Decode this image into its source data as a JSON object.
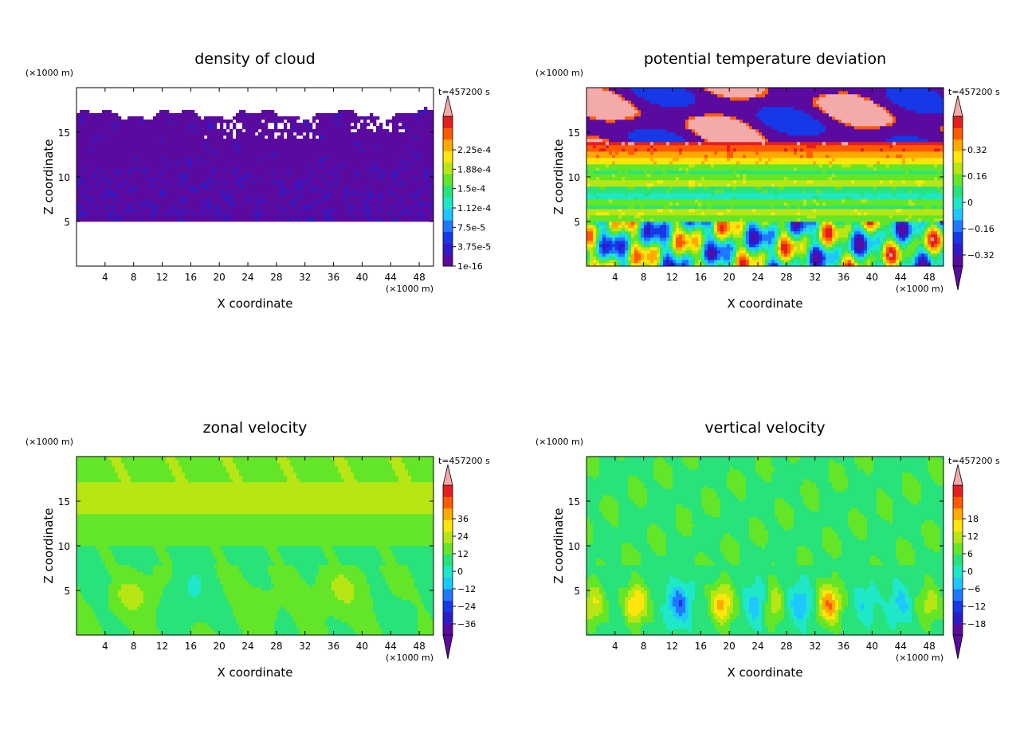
{
  "chart_data": [
    {
      "type": "heatmap",
      "title": "density of cloud",
      "xlabel": "X coordinate",
      "ylabel": "Z coordinate",
      "x_unit": "(×1000 m)",
      "y_unit": "(×1000 m)",
      "time_label": "t=457200 s",
      "xlim": [
        0,
        50
      ],
      "ylim": [
        0,
        20
      ],
      "x_ticks": [
        "4",
        "8",
        "12",
        "16",
        "20",
        "24",
        "28",
        "32",
        "36",
        "40",
        "44",
        "48"
      ],
      "y_ticks": [
        "5",
        "10",
        "15"
      ],
      "colorbar": {
        "labels": [
          "2.25e-4",
          "1.88e-4",
          "1.5e-4",
          "1.12e-4",
          "7.5e-5",
          "3.75e-5",
          "1e-16"
        ],
        "min_arrow": false,
        "max_arrow": true
      },
      "field": "cloud"
    },
    {
      "type": "heatmap",
      "title": "potential temperature deviation",
      "xlabel": "X coordinate",
      "ylabel": "Z coordinate",
      "x_unit": "(×1000 m)",
      "y_unit": "(×1000 m)",
      "time_label": "t=457200 s",
      "xlim": [
        0,
        50
      ],
      "ylim": [
        0,
        20
      ],
      "x_ticks": [
        "4",
        "8",
        "12",
        "16",
        "20",
        "24",
        "28",
        "32",
        "36",
        "40",
        "44",
        "48"
      ],
      "y_ticks": [
        "5",
        "10",
        "15"
      ],
      "colorbar": {
        "labels": [
          "0.32",
          "0.16",
          "0",
          "−0.16",
          "−0.32"
        ],
        "min_arrow": true,
        "max_arrow": true
      },
      "field": "theta"
    },
    {
      "type": "heatmap",
      "title": "zonal velocity",
      "xlabel": "X coordinate",
      "ylabel": "Z coordinate",
      "x_unit": "(×1000 m)",
      "y_unit": "(×1000 m)",
      "time_label": "t=457200 s",
      "xlim": [
        0,
        50
      ],
      "ylim": [
        0,
        20
      ],
      "x_ticks": [
        "4",
        "8",
        "12",
        "16",
        "20",
        "24",
        "28",
        "32",
        "36",
        "40",
        "44",
        "48"
      ],
      "y_ticks": [
        "5",
        "10",
        "15"
      ],
      "colorbar": {
        "labels": [
          "36",
          "24",
          "12",
          "0",
          "−12",
          "−24",
          "−36"
        ],
        "min_arrow": true,
        "max_arrow": true
      },
      "field": "u"
    },
    {
      "type": "heatmap",
      "title": "vertical velocity",
      "xlabel": "X coordinate",
      "ylabel": "Z coordinate",
      "x_unit": "(×1000 m)",
      "y_unit": "(×1000 m)",
      "time_label": "t=457200 s",
      "xlim": [
        0,
        50
      ],
      "ylim": [
        0,
        20
      ],
      "x_ticks": [
        "4",
        "8",
        "12",
        "16",
        "20",
        "24",
        "28",
        "32",
        "36",
        "40",
        "44",
        "48"
      ],
      "y_ticks": [
        "5",
        "10",
        "15"
      ],
      "colorbar": {
        "labels": [
          "18",
          "12",
          "6",
          "0",
          "−6",
          "−12",
          "−18"
        ],
        "min_arrow": true,
        "max_arrow": true
      },
      "field": "w"
    }
  ],
  "palette": [
    "#5b0aa0",
    "#2d1ac8",
    "#1638e6",
    "#1f78ff",
    "#1ec8ff",
    "#1ee8c8",
    "#28e27a",
    "#64e628",
    "#b8e614",
    "#ffe60a",
    "#ffaa00",
    "#ff5a00",
    "#e61e1e",
    "#f5aaaa"
  ]
}
